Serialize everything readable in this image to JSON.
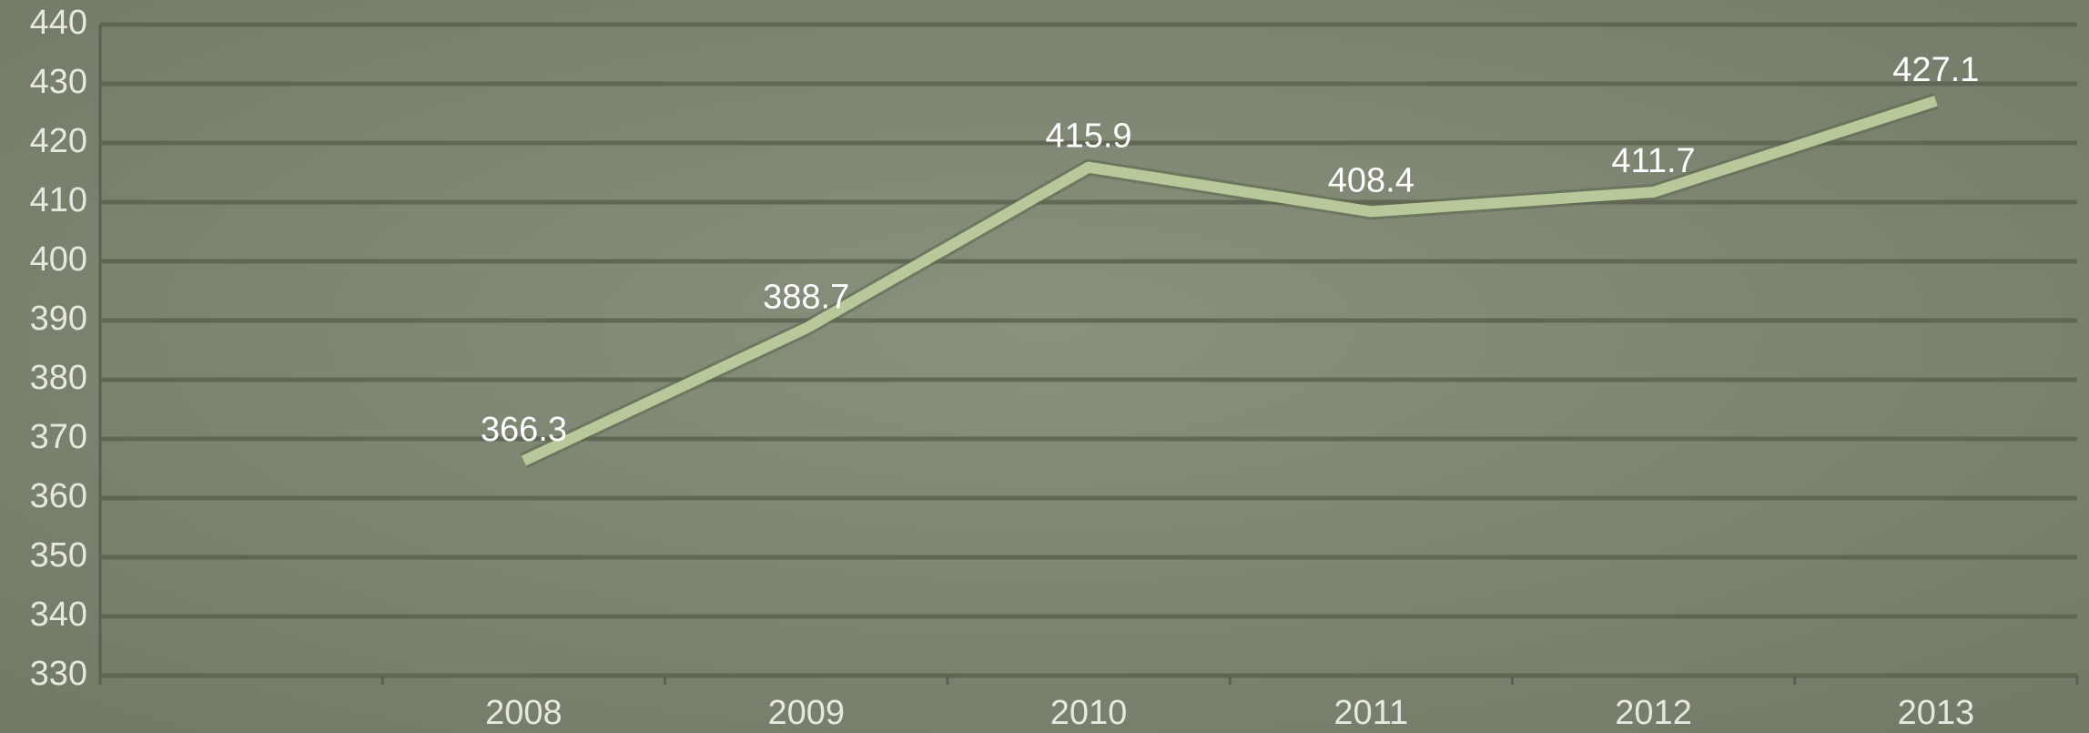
{
  "chart_data": {
    "type": "line",
    "categories": [
      null,
      "2008",
      "2009",
      "2010",
      "2011",
      "2012",
      "2013"
    ],
    "values": [
      null,
      366.3,
      388.7,
      415.9,
      408.4,
      411.7,
      427.1
    ],
    "color": "#b7c99b",
    "ylim": [
      330,
      440
    ],
    "yticks": [
      330,
      340,
      350,
      360,
      370,
      380,
      390,
      400,
      410,
      420,
      430,
      440
    ],
    "grid": true
  }
}
